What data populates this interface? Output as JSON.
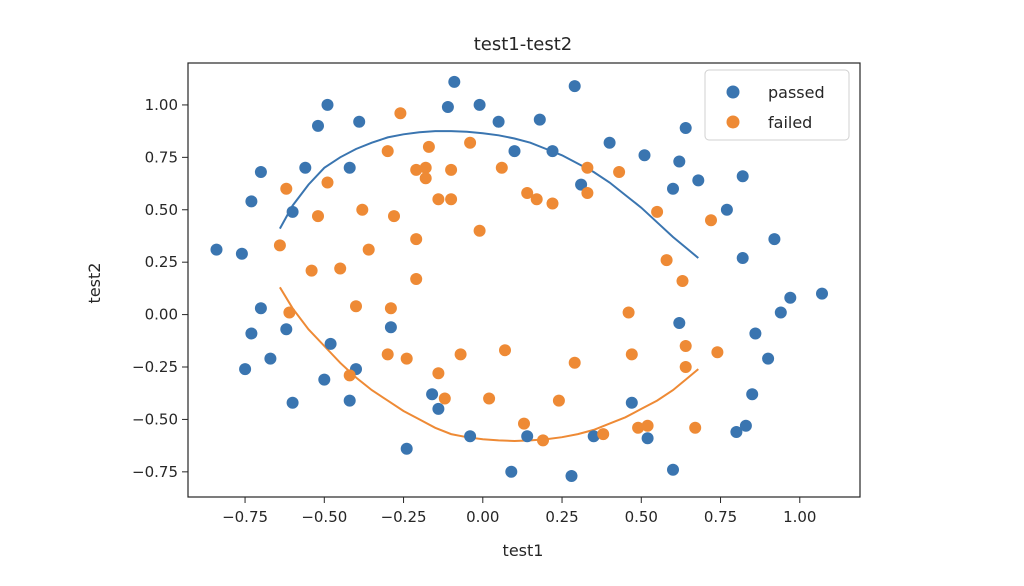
{
  "chart_data": {
    "type": "scatter",
    "title": "test1-test2",
    "xlabel": "test1",
    "ylabel": "test2",
    "xlim": [
      -0.93,
      1.19
    ],
    "ylim": [
      -0.87,
      1.2
    ],
    "xticks": [
      -0.75,
      -0.5,
      -0.25,
      0.0,
      0.25,
      0.5,
      0.75,
      1.0
    ],
    "yticks": [
      -0.75,
      -0.5,
      -0.25,
      0.0,
      0.25,
      0.5,
      0.75,
      1.0
    ],
    "xtick_labels": [
      "−0.75",
      "−0.50",
      "−0.25",
      "0.00",
      "0.25",
      "0.50",
      "0.75",
      "1.00"
    ],
    "ytick_labels": [
      "−0.75",
      "−0.50",
      "−0.25",
      "0.00",
      "0.25",
      "0.50",
      "0.75",
      "1.00"
    ],
    "grid": false,
    "legend_position": "top-right",
    "series": [
      {
        "name": "passed",
        "color": "#3a75b0",
        "points": [
          [
            -0.84,
            0.31
          ],
          [
            -0.76,
            0.29
          ],
          [
            -0.73,
            0.54
          ],
          [
            -0.7,
            0.68
          ],
          [
            -0.7,
            0.03
          ],
          [
            -0.73,
            -0.09
          ],
          [
            -0.75,
            -0.26
          ],
          [
            -0.67,
            -0.21
          ],
          [
            -0.6,
            0.49
          ],
          [
            -0.62,
            -0.07
          ],
          [
            -0.6,
            -0.42
          ],
          [
            -0.56,
            0.7
          ],
          [
            -0.52,
            0.9
          ],
          [
            -0.49,
            1.0
          ],
          [
            -0.42,
            0.7
          ],
          [
            -0.39,
            0.92
          ],
          [
            -0.48,
            -0.14
          ],
          [
            -0.5,
            -0.31
          ],
          [
            -0.4,
            -0.26
          ],
          [
            -0.42,
            -0.41
          ],
          [
            -0.29,
            -0.06
          ],
          [
            -0.24,
            -0.64
          ],
          [
            -0.16,
            -0.38
          ],
          [
            -0.14,
            -0.45
          ],
          [
            -0.11,
            0.99
          ],
          [
            -0.09,
            1.11
          ],
          [
            -0.04,
            -0.58
          ],
          [
            -0.01,
            1.0
          ],
          [
            0.05,
            0.92
          ],
          [
            0.1,
            0.78
          ],
          [
            0.09,
            -0.75
          ],
          [
            0.14,
            -0.58
          ],
          [
            0.18,
            0.93
          ],
          [
            0.22,
            0.78
          ],
          [
            0.29,
            1.09
          ],
          [
            0.31,
            0.62
          ],
          [
            0.28,
            -0.77
          ],
          [
            0.35,
            -0.58
          ],
          [
            0.4,
            0.82
          ],
          [
            0.47,
            -0.42
          ],
          [
            0.51,
            0.76
          ],
          [
            0.52,
            -0.59
          ],
          [
            0.6,
            0.6
          ],
          [
            0.62,
            0.73
          ],
          [
            0.64,
            0.89
          ],
          [
            0.62,
            -0.04
          ],
          [
            0.6,
            -0.74
          ],
          [
            0.68,
            0.64
          ],
          [
            0.77,
            0.5
          ],
          [
            0.8,
            -0.56
          ],
          [
            0.82,
            0.66
          ],
          [
            0.82,
            0.27
          ],
          [
            0.83,
            -0.53
          ],
          [
            0.85,
            -0.38
          ],
          [
            0.86,
            -0.09
          ],
          [
            0.9,
            -0.21
          ],
          [
            0.92,
            0.36
          ],
          [
            0.94,
            0.01
          ],
          [
            0.97,
            0.08
          ],
          [
            1.07,
            0.1
          ]
        ]
      },
      {
        "name": "failed",
        "color": "#ee8a35",
        "points": [
          [
            -0.64,
            0.33
          ],
          [
            -0.62,
            0.6
          ],
          [
            -0.61,
            0.01
          ],
          [
            -0.54,
            0.21
          ],
          [
            -0.52,
            0.47
          ],
          [
            -0.49,
            0.63
          ],
          [
            -0.45,
            0.22
          ],
          [
            -0.42,
            -0.29
          ],
          [
            -0.4,
            0.04
          ],
          [
            -0.38,
            0.5
          ],
          [
            -0.36,
            0.31
          ],
          [
            -0.3,
            0.78
          ],
          [
            -0.29,
            0.03
          ],
          [
            -0.28,
            0.47
          ],
          [
            -0.26,
            0.96
          ],
          [
            -0.3,
            -0.19
          ],
          [
            -0.24,
            -0.21
          ],
          [
            -0.21,
            0.69
          ],
          [
            -0.21,
            0.36
          ],
          [
            -0.21,
            0.17
          ],
          [
            -0.18,
            0.7
          ],
          [
            -0.18,
            0.65
          ],
          [
            -0.17,
            0.8
          ],
          [
            -0.14,
            0.55
          ],
          [
            -0.14,
            -0.28
          ],
          [
            -0.12,
            -0.4
          ],
          [
            -0.1,
            0.69
          ],
          [
            -0.1,
            0.55
          ],
          [
            -0.07,
            -0.19
          ],
          [
            -0.04,
            0.82
          ],
          [
            -0.01,
            0.4
          ],
          [
            0.02,
            -0.4
          ],
          [
            0.06,
            0.7
          ],
          [
            0.07,
            -0.17
          ],
          [
            0.13,
            -0.52
          ],
          [
            0.14,
            0.58
          ],
          [
            0.17,
            0.55
          ],
          [
            0.19,
            -0.6
          ],
          [
            0.22,
            0.53
          ],
          [
            0.24,
            -0.41
          ],
          [
            0.29,
            -0.23
          ],
          [
            0.33,
            0.58
          ],
          [
            0.33,
            0.7
          ],
          [
            0.38,
            -0.57
          ],
          [
            0.43,
            0.68
          ],
          [
            0.46,
            0.01
          ],
          [
            0.47,
            -0.19
          ],
          [
            0.49,
            -0.54
          ],
          [
            0.52,
            -0.53
          ],
          [
            0.55,
            0.49
          ],
          [
            0.58,
            0.26
          ],
          [
            0.63,
            0.16
          ],
          [
            0.64,
            -0.15
          ],
          [
            0.64,
            -0.25
          ],
          [
            0.67,
            -0.54
          ],
          [
            0.72,
            0.45
          ],
          [
            0.74,
            -0.18
          ]
        ]
      }
    ],
    "curves": [
      {
        "color": "#3a75b0",
        "points": [
          [
            -0.64,
            0.41
          ],
          [
            -0.6,
            0.52
          ],
          [
            -0.55,
            0.62
          ],
          [
            -0.5,
            0.7
          ],
          [
            -0.45,
            0.75
          ],
          [
            -0.4,
            0.79
          ],
          [
            -0.35,
            0.82
          ],
          [
            -0.3,
            0.845
          ],
          [
            -0.25,
            0.86
          ],
          [
            -0.2,
            0.87
          ],
          [
            -0.15,
            0.875
          ],
          [
            -0.1,
            0.875
          ],
          [
            -0.05,
            0.872
          ],
          [
            0.0,
            0.865
          ],
          [
            0.05,
            0.855
          ],
          [
            0.1,
            0.84
          ],
          [
            0.15,
            0.82
          ],
          [
            0.2,
            0.79
          ],
          [
            0.25,
            0.76
          ],
          [
            0.3,
            0.72
          ],
          [
            0.35,
            0.68
          ],
          [
            0.4,
            0.63
          ],
          [
            0.45,
            0.57
          ],
          [
            0.5,
            0.51
          ],
          [
            0.55,
            0.44
          ],
          [
            0.6,
            0.37
          ],
          [
            0.64,
            0.32
          ],
          [
            0.68,
            0.27
          ]
        ]
      },
      {
        "color": "#ee8a35",
        "points": [
          [
            -0.64,
            0.13
          ],
          [
            -0.6,
            0.03
          ],
          [
            -0.55,
            -0.07
          ],
          [
            -0.5,
            -0.15
          ],
          [
            -0.45,
            -0.23
          ],
          [
            -0.4,
            -0.3
          ],
          [
            -0.35,
            -0.36
          ],
          [
            -0.3,
            -0.41
          ],
          [
            -0.25,
            -0.46
          ],
          [
            -0.2,
            -0.5
          ],
          [
            -0.15,
            -0.54
          ],
          [
            -0.1,
            -0.57
          ],
          [
            -0.05,
            -0.585
          ],
          [
            0.0,
            -0.595
          ],
          [
            0.05,
            -0.6
          ],
          [
            0.1,
            -0.603
          ],
          [
            0.15,
            -0.6
          ],
          [
            0.2,
            -0.595
          ],
          [
            0.25,
            -0.585
          ],
          [
            0.3,
            -0.57
          ],
          [
            0.35,
            -0.55
          ],
          [
            0.4,
            -0.52
          ],
          [
            0.45,
            -0.49
          ],
          [
            0.5,
            -0.45
          ],
          [
            0.55,
            -0.41
          ],
          [
            0.6,
            -0.36
          ],
          [
            0.64,
            -0.31
          ],
          [
            0.68,
            -0.26
          ]
        ]
      }
    ]
  }
}
